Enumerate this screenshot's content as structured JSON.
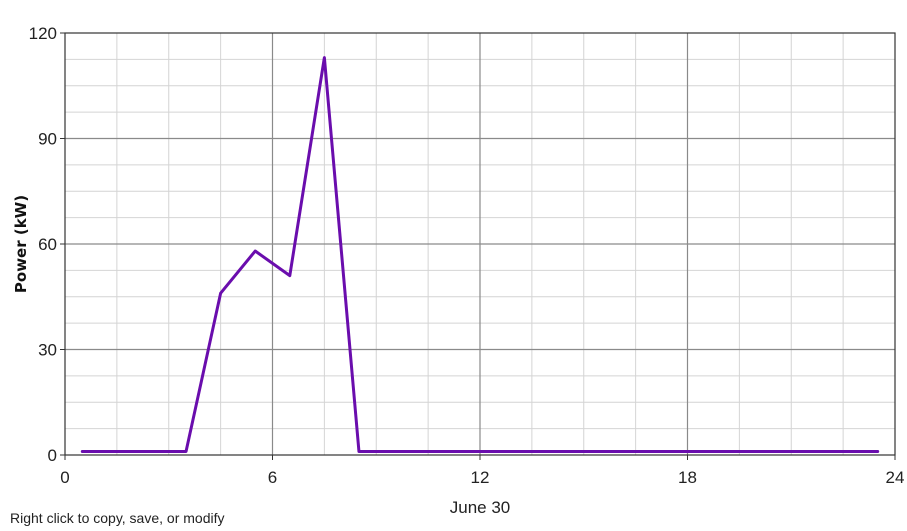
{
  "chart_data": {
    "type": "line",
    "title": "",
    "xlabel": "June 30",
    "ylabel": "Power (kW)",
    "xlim": [
      0,
      24
    ],
    "ylim": [
      0,
      120
    ],
    "x_ticks": [
      "0",
      "6",
      "12",
      "18",
      "24"
    ],
    "y_ticks": [
      "0",
      "30",
      "60",
      "90",
      "120"
    ],
    "grid": true,
    "series": [
      {
        "color": "#6a0dad",
        "x": [
          0.5,
          3.5,
          4.5,
          5.5,
          6.5,
          7.5,
          8.5,
          9.5,
          23.5
        ],
        "y": [
          1,
          1,
          46,
          58,
          51,
          113,
          1,
          1,
          1
        ]
      }
    ]
  },
  "footer": {
    "hint": "Right click to copy, save, or modify"
  }
}
